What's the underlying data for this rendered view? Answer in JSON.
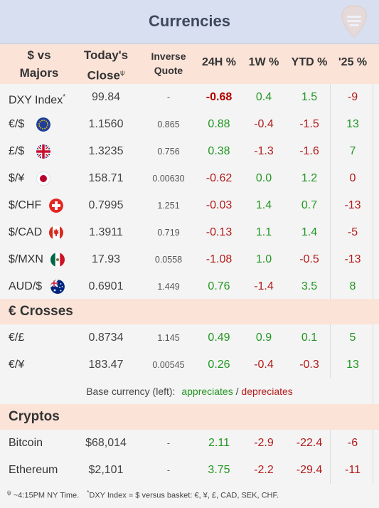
{
  "header": {
    "title": "Currencies"
  },
  "columns": {
    "main_line1": "$ vs",
    "main_line2": "Majors",
    "close_line1": "Today's",
    "close_line2": "Close",
    "close_sup": "ψ",
    "inverse_line1": "Inverse",
    "inverse_line2": "Quote",
    "h24": "24H %",
    "w1": "1W %",
    "ytd": "YTD %",
    "y25": "'25 %"
  },
  "majors": [
    {
      "name": "DXY Index",
      "sup": "*",
      "close": "99.84",
      "inverse": "-",
      "h24": "-0.68",
      "w1": "0.4",
      "ytd": "1.5",
      "y25": "-9"
    },
    {
      "name": "€/$",
      "close": "1.1560",
      "inverse": "0.865",
      "h24": "0.88",
      "w1": "-0.4",
      "ytd": "-1.5",
      "y25": "13"
    },
    {
      "name": "£/$",
      "close": "1.3235",
      "inverse": "0.756",
      "h24": "0.38",
      "w1": "-1.3",
      "ytd": "-1.6",
      "y25": "7"
    },
    {
      "name": "$/¥",
      "close": "158.71",
      "inverse": "0.00630",
      "h24": "-0.62",
      "w1": "0.0",
      "ytd": "1.2",
      "y25": "0"
    },
    {
      "name": "$/CHF",
      "close": "0.7995",
      "inverse": "1.251",
      "h24": "-0.03",
      "w1": "1.4",
      "ytd": "0.7",
      "y25": "-13"
    },
    {
      "name": "$/CAD",
      "close": "1.3911",
      "inverse": "0.719",
      "h24": "-0.13",
      "w1": "1.1",
      "ytd": "1.4",
      "y25": "-5"
    },
    {
      "name": "$/MXN",
      "close": "17.93",
      "inverse": "0.0558",
      "h24": "-1.08",
      "w1": "1.0",
      "ytd": "-0.5",
      "y25": "-13"
    },
    {
      "name": "AUD/$",
      "close": "0.6901",
      "inverse": "1.449",
      "h24": "0.76",
      "w1": "-1.4",
      "ytd": "3.5",
      "y25": "8"
    }
  ],
  "crosses_title": "€ Crosses",
  "crosses": [
    {
      "name": "€/£",
      "close": "0.8734",
      "inverse": "1.145",
      "h24": "0.49",
      "w1": "0.9",
      "ytd": "0.1",
      "y25": "5"
    },
    {
      "name": "€/¥",
      "close": "183.47",
      "inverse": "0.00545",
      "h24": "0.26",
      "w1": "-0.4",
      "ytd": "-0.3",
      "y25": "13"
    }
  ],
  "legend": {
    "prefix": "Base currency (left):",
    "appreciates": "appreciates",
    "sep": "/",
    "depreciates": "depreciates"
  },
  "cryptos_title": "Cryptos",
  "cryptos": [
    {
      "name": "Bitcoin",
      "close": "$68,014",
      "inverse": "-",
      "h24": "2.11",
      "w1": "-2.9",
      "ytd": "-22.4",
      "y25": "-6"
    },
    {
      "name": "Ethereum",
      "close": "$2,101",
      "inverse": "-",
      "h24": "3.75",
      "w1": "-2.2",
      "ytd": "-29.4",
      "y25": "-11"
    }
  ],
  "footnote": {
    "sup1": "ψ",
    "text1": " ~4:15PM NY Time.",
    "sup2": "*",
    "text2": "DXY Index = $ versus basket: €, ¥, £, CAD, SEK, CHF."
  },
  "icons": {
    "logo": "guitar-pick-logo-icon",
    "eu_flag": "eu-flag-icon",
    "uk_flag": "uk-flag-icon",
    "jp_flag": "japan-flag-icon",
    "ch_flag": "switzerland-flag-icon",
    "ca_flag": "canada-flag-icon",
    "mx_flag": "mexico-flag-icon",
    "au_flag": "australia-flag-icon"
  },
  "colors": {
    "title_bg": "#d8dff0",
    "header_bg": "#fbe3d8",
    "positive": "#219621",
    "negative": "#b31b1b"
  }
}
